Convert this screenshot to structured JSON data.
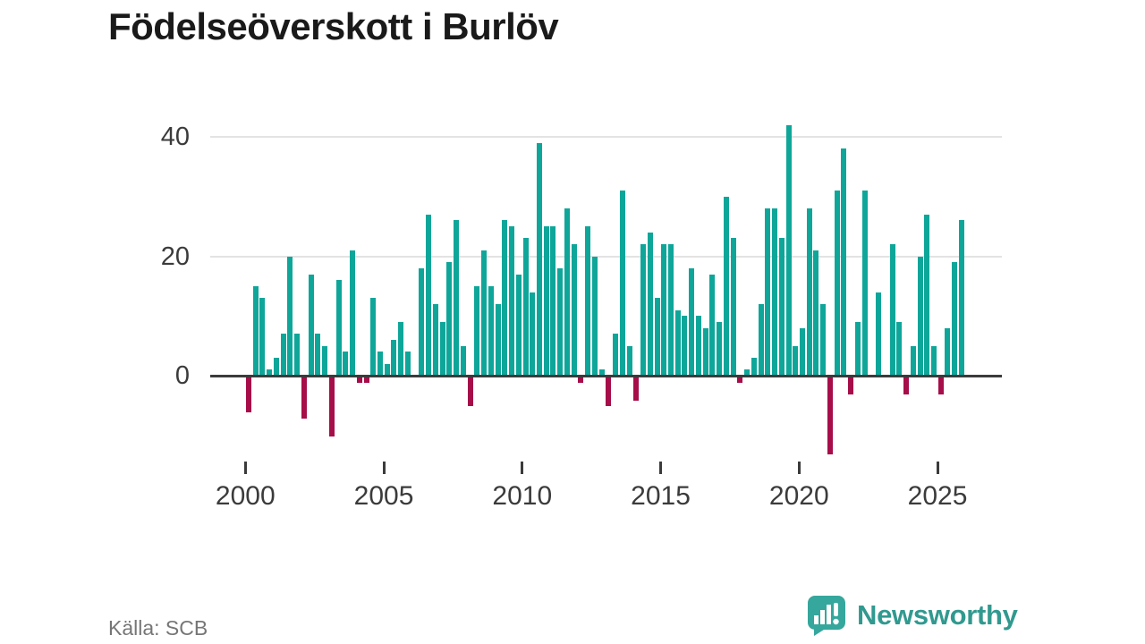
{
  "title": "Födelseöverskott i Burlöv",
  "source": "Källa: SCB",
  "branding": {
    "name": "Newsworthy",
    "icon": "speech-bubble-bar-chart-icon"
  },
  "colors": {
    "positive_bar": "#0fa69a",
    "negative_bar": "#a60e49",
    "axis": "#3b3b3b",
    "gridline": "#e3e3e3",
    "title_text": "#1a1a1a",
    "tick_text": "#3b3b3b",
    "source_text": "#767676",
    "brand": "#31998f"
  },
  "chart_data": {
    "type": "bar",
    "title": "Födelseöverskott i Burlöv",
    "xlabel": "",
    "ylabel": "",
    "x_tick_labels": [
      "2000",
      "2005",
      "2010",
      "2015",
      "2020",
      "2025"
    ],
    "y_tick_labels": [
      "0",
      "20",
      "40"
    ],
    "y_ticks": [
      0,
      20,
      40
    ],
    "ylim": [
      -14,
      43
    ],
    "grid": "horizontal",
    "legend": "none",
    "frequency": "quarterly",
    "start": "2000-Q1",
    "end": "2025-Q4",
    "series": [
      {
        "year": 2000,
        "values": [
          -6,
          15,
          13,
          1
        ]
      },
      {
        "year": 2001,
        "values": [
          3,
          7,
          20,
          7
        ]
      },
      {
        "year": 2002,
        "values": [
          -7,
          17,
          7,
          5
        ]
      },
      {
        "year": 2003,
        "values": [
          -10,
          16,
          4,
          21
        ]
      },
      {
        "year": 2004,
        "values": [
          -1,
          -1,
          13,
          4
        ]
      },
      {
        "year": 2005,
        "values": [
          2,
          6,
          9,
          4
        ]
      },
      {
        "year": 2006,
        "values": [
          0,
          18,
          27,
          12
        ]
      },
      {
        "year": 2007,
        "values": [
          9,
          19,
          26,
          5
        ]
      },
      {
        "year": 2008,
        "values": [
          -5,
          15,
          21,
          15
        ]
      },
      {
        "year": 2009,
        "values": [
          12,
          26,
          25,
          17
        ]
      },
      {
        "year": 2010,
        "values": [
          23,
          14,
          39,
          25
        ]
      },
      {
        "year": 2011,
        "values": [
          25,
          18,
          28,
          22
        ]
      },
      {
        "year": 2012,
        "values": [
          -1,
          25,
          20,
          1
        ]
      },
      {
        "year": 2013,
        "values": [
          -5,
          7,
          31,
          5
        ]
      },
      {
        "year": 2014,
        "values": [
          -4,
          22,
          24,
          13
        ]
      },
      {
        "year": 2015,
        "values": [
          22,
          22,
          11,
          10
        ]
      },
      {
        "year": 2016,
        "values": [
          18,
          10,
          8,
          17
        ]
      },
      {
        "year": 2017,
        "values": [
          9,
          30,
          23,
          -1
        ]
      },
      {
        "year": 2018,
        "values": [
          1,
          3,
          12,
          28
        ]
      },
      {
        "year": 2019,
        "values": [
          28,
          23,
          42,
          5
        ]
      },
      {
        "year": 2020,
        "values": [
          8,
          28,
          21,
          12
        ]
      },
      {
        "year": 2021,
        "values": [
          -13,
          31,
          38,
          -3
        ]
      },
      {
        "year": 2022,
        "values": [
          9,
          31,
          0,
          14
        ]
      },
      {
        "year": 2023,
        "values": [
          0,
          22,
          9,
          -3
        ]
      },
      {
        "year": 2024,
        "values": [
          5,
          20,
          27,
          5
        ]
      },
      {
        "year": 2025,
        "values": [
          -3,
          8,
          19,
          26
        ]
      }
    ]
  }
}
